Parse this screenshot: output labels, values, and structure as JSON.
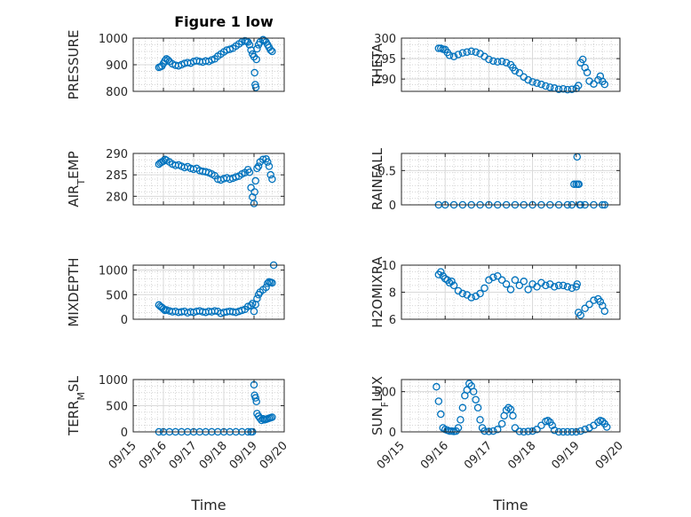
{
  "figure": {
    "title": "Figure 1 low",
    "marker_color": "#0072BD"
  },
  "chart_data": [
    {
      "type": "scatter",
      "ylabel": "PRESSURE",
      "ylim": [
        800,
        1000
      ],
      "yticks": [
        "800",
        "900",
        "1000"
      ],
      "xlim": [
        15,
        20
      ],
      "xticks": [],
      "xlabel": "",
      "grid": true,
      "x": [
        15.85,
        15.9,
        15.95,
        16.0,
        16.05,
        16.1,
        16.15,
        16.2,
        16.3,
        16.4,
        16.5,
        16.6,
        16.7,
        16.8,
        16.9,
        17.0,
        17.1,
        17.2,
        17.3,
        17.4,
        17.5,
        17.6,
        17.7,
        17.8,
        17.9,
        18.0,
        18.1,
        18.2,
        18.3,
        18.4,
        18.5,
        18.6,
        18.7,
        18.75,
        18.8,
        18.85,
        18.9,
        18.95,
        19.0,
        19.02,
        19.04,
        19.06,
        19.08,
        19.1,
        19.15,
        19.2,
        19.3,
        19.35,
        19.4,
        19.45,
        19.5,
        19.55,
        19.6
      ],
      "y": [
        890,
        892,
        895,
        905,
        915,
        922,
        918,
        912,
        903,
        898,
        896,
        900,
        905,
        908,
        906,
        912,
        915,
        912,
        910,
        914,
        912,
        918,
        922,
        932,
        940,
        948,
        955,
        958,
        962,
        970,
        978,
        986,
        990,
        988,
        985,
        975,
        955,
        940,
        930,
        870,
        825,
        815,
        920,
        960,
        975,
        985,
        994,
        990,
        985,
        975,
        965,
        955,
        950
      ]
    },
    {
      "type": "scatter",
      "ylabel": "THETA",
      "ylim": [
        287,
        300
      ],
      "yticks": [
        "290",
        "295",
        "300"
      ],
      "xlim": [
        15,
        20
      ],
      "xticks": [],
      "xlabel": "",
      "grid": true,
      "x": [
        15.85,
        15.9,
        15.95,
        16.0,
        16.05,
        16.1,
        16.2,
        16.3,
        16.4,
        16.5,
        16.6,
        16.7,
        16.8,
        16.9,
        17.0,
        17.1,
        17.2,
        17.3,
        17.4,
        17.5,
        17.55,
        17.6,
        17.7,
        17.8,
        17.9,
        18.0,
        18.1,
        18.2,
        18.3,
        18.4,
        18.5,
        18.6,
        18.7,
        18.8,
        18.9,
        19.0,
        19.05,
        19.1,
        19.15,
        19.2,
        19.25,
        19.3,
        19.4,
        19.5,
        19.55,
        19.6,
        19.65
      ],
      "y": [
        297.5,
        297.5,
        297.3,
        297.2,
        296.5,
        295.8,
        295.5,
        296.0,
        296.4,
        296.6,
        296.8,
        296.6,
        296.2,
        295.5,
        294.8,
        294.4,
        294.2,
        294.3,
        294.0,
        293.5,
        292.8,
        292.0,
        291.5,
        290.5,
        289.8,
        289.3,
        289.0,
        288.7,
        288.3,
        288.0,
        287.8,
        287.5,
        287.6,
        287.4,
        287.5,
        287.7,
        288.4,
        294.0,
        294.8,
        292.8,
        291.6,
        289.5,
        288.8,
        289.8,
        290.7,
        289.4,
        288.7
      ]
    },
    {
      "type": "scatter",
      "ylabel": "AIR_TEMP",
      "ylim": [
        278,
        290
      ],
      "yticks": [
        "280",
        "285",
        "290"
      ],
      "xlim": [
        15,
        20
      ],
      "xticks": [],
      "xlabel": "",
      "grid": true,
      "x": [
        15.85,
        15.9,
        15.95,
        16.0,
        16.05,
        16.1,
        16.2,
        16.3,
        16.4,
        16.5,
        16.6,
        16.7,
        16.8,
        16.9,
        17.0,
        17.1,
        17.2,
        17.3,
        17.4,
        17.5,
        17.6,
        17.7,
        17.8,
        17.9,
        18.0,
        18.1,
        18.2,
        18.3,
        18.4,
        18.5,
        18.6,
        18.7,
        18.8,
        18.85,
        18.9,
        18.95,
        19.0,
        19.02,
        19.05,
        19.1,
        19.15,
        19.2,
        19.3,
        19.4,
        19.45,
        19.5,
        19.55,
        19.6
      ],
      "y": [
        287.5,
        287.8,
        288.0,
        288.2,
        288.6,
        288.4,
        288.0,
        287.5,
        287.2,
        287.3,
        287.0,
        286.7,
        286.9,
        286.5,
        286.3,
        286.5,
        286.0,
        285.8,
        285.7,
        285.5,
        285.2,
        284.8,
        284.0,
        283.8,
        284.1,
        284.3,
        284.0,
        284.2,
        284.5,
        284.7,
        285.2,
        285.5,
        286.2,
        285.6,
        282.0,
        279.8,
        278.3,
        281.0,
        283.6,
        286.5,
        287.0,
        288.0,
        288.6,
        288.7,
        288.0,
        287.0,
        285.0,
        284.0
      ]
    },
    {
      "type": "scatter",
      "ylabel": "RAINFALL",
      "ylim": [
        0,
        0.75
      ],
      "yticks": [
        "0",
        "0.5"
      ],
      "xlim": [
        15,
        20
      ],
      "xticks": [],
      "xlabel": "",
      "grid": true,
      "x": [
        15.85,
        16.0,
        16.2,
        16.4,
        16.6,
        16.8,
        17.0,
        17.2,
        17.4,
        17.6,
        17.8,
        18.0,
        18.2,
        18.4,
        18.6,
        18.8,
        18.9,
        18.95,
        19.0,
        19.02,
        19.04,
        19.06,
        19.08,
        19.1,
        19.2,
        19.4,
        19.6,
        19.65
      ],
      "y": [
        0,
        0,
        0,
        0,
        0,
        0,
        0,
        0,
        0,
        0,
        0,
        0,
        0,
        0,
        0,
        0,
        0,
        0.3,
        0.3,
        0.7,
        0.3,
        0.3,
        0,
        0,
        0,
        0,
        0,
        0
      ]
    },
    {
      "type": "scatter",
      "ylabel": "MIXDEPTH",
      "ylim": [
        0,
        1100
      ],
      "yticks": [
        "0",
        "500",
        "1000"
      ],
      "xlim": [
        15,
        20
      ],
      "xticks": [],
      "xlabel": "",
      "grid": true,
      "x": [
        15.85,
        15.9,
        15.95,
        16.0,
        16.05,
        16.1,
        16.2,
        16.3,
        16.4,
        16.5,
        16.6,
        16.7,
        16.8,
        16.9,
        17.0,
        17.1,
        17.2,
        17.3,
        17.4,
        17.5,
        17.6,
        17.7,
        17.8,
        17.9,
        18.0,
        18.1,
        18.2,
        18.3,
        18.4,
        18.5,
        18.6,
        18.7,
        18.8,
        18.9,
        18.95,
        19.0,
        19.05,
        19.1,
        19.15,
        19.2,
        19.3,
        19.4,
        19.45,
        19.5,
        19.55,
        19.6,
        19.65
      ],
      "y": [
        290,
        260,
        240,
        210,
        180,
        190,
        170,
        150,
        160,
        140,
        150,
        160,
        130,
        150,
        140,
        160,
        170,
        150,
        140,
        160,
        150,
        170,
        160,
        120,
        140,
        150,
        160,
        150,
        140,
        160,
        180,
        200,
        260,
        280,
        320,
        160,
        300,
        420,
        500,
        550,
        600,
        650,
        730,
        760,
        750,
        740,
        1100
      ]
    },
    {
      "type": "scatter",
      "ylabel": "H2OMIXRA",
      "ylim": [
        6,
        10
      ],
      "yticks": [
        "6",
        "8",
        "10"
      ],
      "xlim": [
        15,
        20
      ],
      "xticks": [],
      "xlabel": "",
      "grid": true,
      "x": [
        15.85,
        15.9,
        15.95,
        16.0,
        16.05,
        16.1,
        16.15,
        16.2,
        16.3,
        16.4,
        16.5,
        16.6,
        16.7,
        16.8,
        16.9,
        17.0,
        17.1,
        17.2,
        17.3,
        17.4,
        17.5,
        17.6,
        17.7,
        17.8,
        17.9,
        18.0,
        18.1,
        18.2,
        18.3,
        18.4,
        18.5,
        18.6,
        18.7,
        18.8,
        18.9,
        19.0,
        19.02,
        19.05,
        19.1,
        19.2,
        19.3,
        19.4,
        19.5,
        19.55,
        19.6,
        19.65
      ],
      "y": [
        9.3,
        9.5,
        9.2,
        9.0,
        8.9,
        8.7,
        8.8,
        8.5,
        8.1,
        7.9,
        7.8,
        7.6,
        7.7,
        7.9,
        8.3,
        8.9,
        9.1,
        9.2,
        8.9,
        8.6,
        8.2,
        8.9,
        8.5,
        8.8,
        8.2,
        8.6,
        8.4,
        8.7,
        8.5,
        8.6,
        8.4,
        8.5,
        8.5,
        8.4,
        8.3,
        8.4,
        8.6,
        6.5,
        6.3,
        6.8,
        7.1,
        7.4,
        7.5,
        7.3,
        7.0,
        6.6
      ]
    },
    {
      "type": "scatter",
      "ylabel": "TERR_MSL",
      "ylim": [
        0,
        1000
      ],
      "yticks": [
        "0",
        "500",
        "1000"
      ],
      "xlim": [
        15,
        20
      ],
      "xticks": [
        "09/15",
        "09/16",
        "09/17",
        "09/18",
        "09/19",
        "09/20"
      ],
      "xlabel": "Time",
      "grid": true,
      "x": [
        15.85,
        16.0,
        16.2,
        16.4,
        16.6,
        16.8,
        17.0,
        17.2,
        17.4,
        17.6,
        17.8,
        18.0,
        18.2,
        18.4,
        18.6,
        18.8,
        18.9,
        18.95,
        19.0,
        19.02,
        19.05,
        19.08,
        19.1,
        19.15,
        19.2,
        19.25,
        19.3,
        19.35,
        19.4,
        19.45,
        19.5,
        19.55,
        19.6
      ],
      "y": [
        0,
        0,
        0,
        0,
        0,
        0,
        0,
        0,
        0,
        0,
        0,
        0,
        0,
        0,
        0,
        0,
        0,
        0,
        900,
        700,
        650,
        580,
        350,
        300,
        260,
        220,
        250,
        230,
        240,
        250,
        260,
        270,
        280
      ]
    },
    {
      "type": "scatter",
      "ylabel": "SUN_FLUX",
      "ylim": [
        0,
        650
      ],
      "yticks": [
        "0",
        "500"
      ],
      "xlim": [
        15,
        20
      ],
      "xticks": [
        "09/15",
        "09/16",
        "09/17",
        "09/18",
        "09/19",
        "09/20"
      ],
      "xlabel": "Time",
      "grid": true,
      "x": [
        15.8,
        15.85,
        15.9,
        15.95,
        16.0,
        16.05,
        16.1,
        16.15,
        16.2,
        16.25,
        16.3,
        16.35,
        16.4,
        16.45,
        16.5,
        16.55,
        16.6,
        16.65,
        16.7,
        16.75,
        16.8,
        16.85,
        16.9,
        17.0,
        17.1,
        17.2,
        17.3,
        17.35,
        17.4,
        17.45,
        17.5,
        17.55,
        17.6,
        17.7,
        17.8,
        17.9,
        18.0,
        18.1,
        18.2,
        18.3,
        18.35,
        18.4,
        18.45,
        18.5,
        18.6,
        18.7,
        18.8,
        18.9,
        19.0,
        19.1,
        19.2,
        19.3,
        19.4,
        19.5,
        19.55,
        19.6,
        19.65,
        19.7
      ],
      "y": [
        560,
        380,
        220,
        50,
        30,
        20,
        10,
        10,
        5,
        10,
        50,
        150,
        300,
        450,
        520,
        600,
        570,
        500,
        400,
        300,
        150,
        50,
        10,
        5,
        10,
        30,
        100,
        200,
        270,
        300,
        280,
        200,
        50,
        5,
        0,
        5,
        10,
        30,
        80,
        130,
        140,
        120,
        80,
        20,
        0,
        0,
        0,
        0,
        0,
        10,
        30,
        50,
        80,
        120,
        140,
        130,
        100,
        60
      ]
    }
  ]
}
